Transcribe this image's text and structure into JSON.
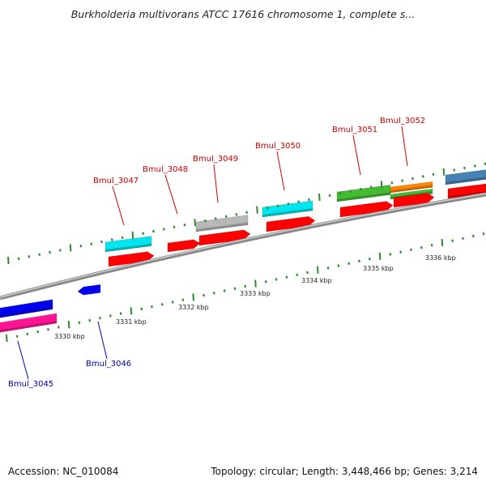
{
  "title": "Burkholderia multivorans ATCC 17616 chromosome 1, complete s...",
  "footer": {
    "accession": "Accession: NC_010084",
    "summary": "Topology: circular; Length: 3,448,466 bp; Genes: 3,214"
  },
  "scale_labels": [
    "3330 kbp",
    "3331 kbp",
    "3332 kbp",
    "3333 kbp",
    "3334 kbp",
    "3335 kbp",
    "3336 kbp"
  ],
  "gene_labels": [
    {
      "text": "Bmul_3045",
      "color": "#0000aa"
    },
    {
      "text": "Bmul_3046",
      "color": "#0000aa"
    },
    {
      "text": "Bmul_3047",
      "color": "#cc0000"
    },
    {
      "text": "Bmul_3048",
      "color": "#cc0000"
    },
    {
      "text": "Bmul_3049",
      "color": "#cc0000"
    },
    {
      "text": "Bmul_3050",
      "color": "#cc0000"
    },
    {
      "text": "Bmul_3051",
      "color": "#cc0000"
    },
    {
      "text": "Bmul_3052",
      "color": "#cc0000"
    }
  ],
  "colors": {
    "backbone": "#888888",
    "tick": "#2f8a2f",
    "forward_cds": "#ff0000",
    "reverse_cds": "#0000ee",
    "reverse_gene": "#ff1493",
    "feature_cyan": "#00e5ee",
    "feature_grey": "#b8b8b8",
    "feature_green": "#44bb33",
    "feature_orange": "#ff8800",
    "feature_steelblue": "#4682b4"
  }
}
